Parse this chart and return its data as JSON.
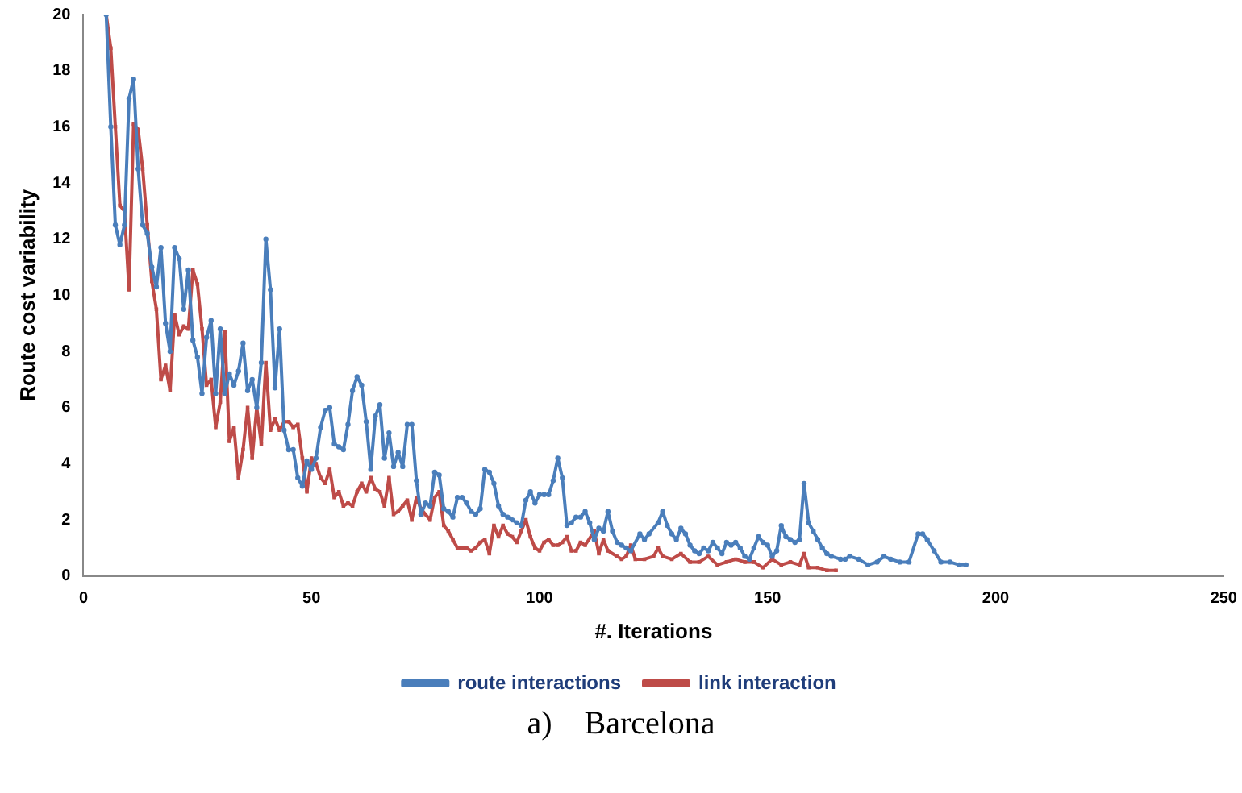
{
  "chart_data": {
    "type": "line",
    "xlabel": "#. Iterations",
    "ylabel": "Route cost variability",
    "annotations": [
      "a)    Barcelona"
    ],
    "xlim": [
      0,
      250
    ],
    "xticks": [
      0,
      50,
      100,
      150,
      200,
      250
    ],
    "ylim": [
      0,
      20
    ],
    "yticks": [
      0,
      2,
      4,
      6,
      8,
      10,
      12,
      14,
      16,
      18,
      20
    ],
    "grid": false,
    "legend": "bottom",
    "line_style": "solid",
    "series": [
      {
        "name": "route interactions",
        "color": "#4a7ebb",
        "marker": "circle",
        "x": [
          5,
          6,
          7,
          8,
          9,
          10,
          11,
          12,
          13,
          14,
          15,
          16,
          17,
          18,
          19,
          20,
          21,
          22,
          23,
          24,
          25,
          26,
          27,
          28,
          29,
          30,
          31,
          32,
          33,
          34,
          35,
          36,
          37,
          38,
          39,
          40,
          41,
          42,
          43,
          44,
          45,
          46,
          47,
          48,
          49,
          50,
          51,
          52,
          53,
          54,
          55,
          56,
          57,
          58,
          59,
          60,
          61,
          62,
          63,
          64,
          65,
          66,
          67,
          68,
          69,
          70,
          71,
          72,
          73,
          74,
          75,
          76,
          77,
          78,
          79,
          80,
          81,
          82,
          83,
          84,
          85,
          86,
          87,
          88,
          89,
          90,
          91,
          92,
          93,
          94,
          95,
          96,
          97,
          98,
          99,
          100,
          101,
          102,
          103,
          104,
          105,
          106,
          107,
          108,
          109,
          110,
          111,
          112,
          113,
          114,
          115,
          116,
          117,
          118,
          119,
          120,
          122,
          123,
          124,
          126,
          127,
          128,
          129,
          130,
          131,
          132,
          133,
          134,
          135,
          136,
          137,
          138,
          139,
          140,
          141,
          142,
          143,
          144,
          145,
          146,
          147,
          148,
          149,
          150,
          151,
          152,
          153,
          154,
          155,
          156,
          157,
          158,
          159,
          160,
          161,
          162,
          163,
          164,
          166,
          167,
          168,
          170,
          172,
          174,
          175.5,
          177,
          179,
          181,
          183,
          184,
          185,
          186.5,
          188,
          190,
          192,
          193.5
        ],
        "values": [
          20,
          16,
          12.5,
          11.8,
          12.5,
          17,
          17.7,
          14.5,
          12.5,
          12.2,
          11,
          10.3,
          11.7,
          9,
          8,
          11.7,
          11.3,
          9.5,
          10.9,
          8.4,
          7.8,
          6.5,
          8.5,
          9.1,
          6.5,
          8.8,
          6.5,
          7.2,
          6.8,
          7.3,
          8.3,
          6.6,
          7,
          6,
          7.6,
          12,
          10.2,
          6.7,
          8.8,
          5.2,
          4.5,
          4.5,
          3.5,
          3.2,
          4.1,
          3.8,
          4.2,
          5.3,
          5.9,
          6,
          4.7,
          4.6,
          4.5,
          5.4,
          6.6,
          7.1,
          6.8,
          5.5,
          3.8,
          5.7,
          6.1,
          4.2,
          5.1,
          3.9,
          4.4,
          3.9,
          5.4,
          5.4,
          3.4,
          2.2,
          2.6,
          2.5,
          3.7,
          3.6,
          2.4,
          2.3,
          2.1,
          2.8,
          2.8,
          2.6,
          2.3,
          2.2,
          2.4,
          3.8,
          3.7,
          3.3,
          2.5,
          2.2,
          2.1,
          2,
          1.9,
          1.8,
          2.7,
          3,
          2.6,
          2.9,
          2.9,
          2.9,
          3.4,
          4.2,
          3.5,
          1.8,
          1.9,
          2.1,
          2.1,
          2.3,
          1.9,
          1.3,
          1.7,
          1.6,
          2.3,
          1.6,
          1.2,
          1.1,
          1,
          0.9,
          1.5,
          1.3,
          1.5,
          1.9,
          2.3,
          1.8,
          1.5,
          1.3,
          1.7,
          1.5,
          1.1,
          0.9,
          0.8,
          1,
          0.9,
          1.2,
          1,
          0.8,
          1.2,
          1.1,
          1.2,
          1,
          0.7,
          0.6,
          1,
          1.4,
          1.2,
          1.1,
          0.7,
          0.9,
          1.8,
          1.4,
          1.3,
          1.2,
          1.3,
          3.3,
          1.9,
          1.6,
          1.3,
          1,
          0.8,
          0.7,
          0.6,
          0.6,
          0.7,
          0.6,
          0.4,
          0.5,
          0.7,
          0.6,
          0.5,
          0.5,
          1.5,
          1.5,
          1.3,
          0.9,
          0.5,
          0.5,
          0.4,
          0.4
        ]
      },
      {
        "name": "link interaction",
        "color": "#be4b48",
        "marker": "square",
        "x": [
          5,
          6,
          7,
          8,
          9,
          10,
          11,
          12,
          13,
          14,
          15,
          16,
          17,
          18,
          19,
          20,
          21,
          22,
          23,
          24,
          25,
          26,
          27,
          28,
          29,
          30,
          31,
          32,
          33,
          34,
          35,
          36,
          37,
          38,
          39,
          40,
          41,
          42,
          43,
          44,
          45,
          46,
          47,
          48,
          49,
          50,
          51,
          52,
          53,
          54,
          55,
          56,
          57,
          58,
          59,
          60,
          61,
          62,
          63,
          64,
          65,
          66,
          67,
          68,
          69,
          70,
          71,
          72,
          73,
          74,
          75,
          76,
          77,
          78,
          79,
          80,
          81,
          82,
          83,
          84,
          85,
          86,
          87,
          88,
          89,
          90,
          91,
          92,
          93,
          94,
          95,
          96,
          97,
          98,
          99,
          100,
          101,
          102,
          103,
          104,
          105,
          106,
          107,
          108,
          109,
          110,
          112,
          113,
          114,
          115,
          117,
          118,
          119,
          120,
          121,
          123,
          125,
          126,
          127,
          129,
          131,
          133,
          135,
          137,
          139,
          141,
          143,
          145,
          147,
          149,
          151,
          153,
          155,
          157,
          158,
          159,
          161,
          163,
          165
        ],
        "values": [
          20,
          18.8,
          16,
          13.2,
          13,
          10.2,
          16.1,
          15.9,
          14.5,
          12.5,
          10.5,
          9.5,
          7,
          7.5,
          6.6,
          9.3,
          8.6,
          8.9,
          8.8,
          10.9,
          10.4,
          8.8,
          6.8,
          7,
          5.3,
          6.2,
          8.7,
          4.8,
          5.3,
          3.5,
          4.5,
          6,
          4.2,
          6,
          4.7,
          7.6,
          5.2,
          5.6,
          5.2,
          5.5,
          5.5,
          5.3,
          5.4,
          4.2,
          3,
          4.2,
          4,
          3.5,
          3.3,
          3.8,
          2.8,
          3,
          2.5,
          2.6,
          2.5,
          3,
          3.3,
          3,
          3.5,
          3.1,
          3,
          2.5,
          3.5,
          2.2,
          2.3,
          2.5,
          2.7,
          2,
          2.8,
          2.4,
          2.2,
          2,
          2.8,
          3,
          1.8,
          1.6,
          1.3,
          1,
          1,
          1,
          0.9,
          1,
          1.2,
          1.3,
          0.8,
          1.8,
          1.4,
          1.8,
          1.5,
          1.4,
          1.2,
          1.6,
          2,
          1.4,
          1,
          0.9,
          1.2,
          1.3,
          1.1,
          1.1,
          1.2,
          1.4,
          0.9,
          0.9,
          1.2,
          1.1,
          1.6,
          0.8,
          1.3,
          0.9,
          0.7,
          0.6,
          0.7,
          1.1,
          0.6,
          0.6,
          0.7,
          1,
          0.7,
          0.6,
          0.8,
          0.5,
          0.5,
          0.7,
          0.4,
          0.5,
          0.6,
          0.5,
          0.5,
          0.3,
          0.6,
          0.4,
          0.5,
          0.4,
          0.8,
          0.3,
          0.3,
          0.2,
          0.2
        ]
      }
    ]
  }
}
